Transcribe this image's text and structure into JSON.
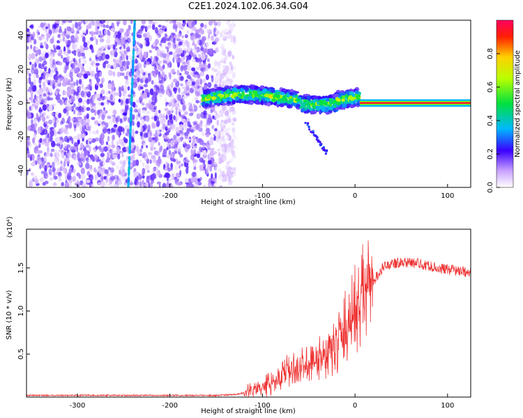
{
  "title": "C2E1.2024.102.06.34.G04",
  "chart_data": [
    {
      "type": "heatmap",
      "title": "C2E1.2024.102.06.34.G04",
      "xlabel": "Height of straight line (km)",
      "ylabel": "Frequency (Hz)",
      "xlim": [
        -355,
        125
      ],
      "ylim": [
        -50,
        49
      ],
      "xticks": [
        -300,
        -200,
        -100,
        0,
        100
      ],
      "xtick_labels": [
        "-300",
        "-200",
        "-100",
        "0",
        "100"
      ],
      "yticks": [
        -40,
        -20,
        0,
        20,
        40
      ],
      "ytick_labels": [
        "-40",
        "-20",
        "0",
        "20",
        "40"
      ],
      "colorbar": {
        "label": "Normalized spectral amplitude",
        "range": [
          0,
          1
        ],
        "ticks": [
          0.0,
          0.2,
          0.4,
          0.6,
          0.8
        ],
        "tick_labels": [
          "0.0",
          "0.2",
          "0.4",
          "0.6",
          "0.8"
        ]
      },
      "features": [
        {
          "description_id": "noise_region",
          "x_range": [
            -355,
            -130
          ],
          "frequency_range": [
            -50,
            49
          ],
          "amplitude_level": 0.15
        },
        {
          "description_id": "vertical_streak",
          "x_range": [
            -245,
            -238
          ],
          "frequency_range": [
            -50,
            49
          ],
          "amplitude_level": 0.3
        },
        {
          "description_id": "signal_band_broad",
          "x_range": [
            -165,
            5
          ],
          "frequency_center": 3,
          "frequency_halfwidth": 5,
          "amplitude_level": 0.45
        },
        {
          "description_id": "signal_band_tail",
          "x_range": [
            -55,
            -30
          ],
          "frequency_center": -20,
          "amplitude_level": 0.2
        },
        {
          "description_id": "signal_band_narrow",
          "x_range": [
            5,
            125
          ],
          "frequency_center": 0,
          "frequency_halfwidth": 1,
          "amplitude_level": 0.95
        }
      ]
    },
    {
      "type": "line",
      "xlabel": "Height of straight line (km)",
      "ylabel": "SNR (10 * v/v)",
      "scale_label": "(x10⁴)",
      "xlim": [
        -355,
        125
      ],
      "ylim": [
        0.0,
        1.95
      ],
      "xticks": [
        -300,
        -200,
        -100,
        0,
        100
      ],
      "xtick_labels": [
        "-300",
        "-200",
        "-100",
        "0",
        "100"
      ],
      "yticks": [
        0.5,
        1.0,
        1.5
      ],
      "ytick_labels": [
        "0.5",
        "1.0",
        "1.5"
      ],
      "color": "#ee3333",
      "series": [
        {
          "x": [
            -355,
            -300,
            -250,
            -200,
            -150,
            -130,
            -120,
            -110,
            -100,
            -90,
            -80,
            -70,
            -60,
            -50,
            -40,
            -30,
            -20,
            -10,
            0,
            10,
            20,
            30,
            40,
            50,
            60,
            70,
            80,
            90,
            100,
            110,
            125
          ],
          "y": [
            0.02,
            0.02,
            0.02,
            0.02,
            0.02,
            0.03,
            0.05,
            0.08,
            0.12,
            0.18,
            0.25,
            0.3,
            0.35,
            0.4,
            0.45,
            0.5,
            0.6,
            0.8,
            1.0,
            1.2,
            1.35,
            1.5,
            1.55,
            1.57,
            1.56,
            1.55,
            1.52,
            1.5,
            1.48,
            1.47,
            1.45
          ]
        }
      ]
    }
  ]
}
